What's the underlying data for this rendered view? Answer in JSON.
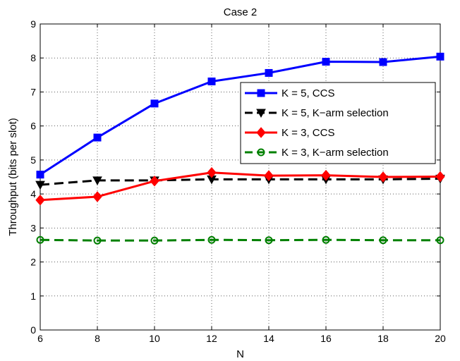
{
  "chart_data": {
    "type": "line",
    "title": "Case 2",
    "xlabel": "N",
    "ylabel": "Throughput (bits per slot)",
    "x": [
      6,
      8,
      10,
      12,
      14,
      16,
      18,
      20
    ],
    "xlim": [
      6,
      20
    ],
    "ylim": [
      0,
      9
    ],
    "xticks": [
      6,
      8,
      10,
      12,
      14,
      16,
      18,
      20
    ],
    "yticks": [
      0,
      1,
      2,
      3,
      4,
      5,
      6,
      7,
      8,
      9
    ],
    "grid": true,
    "legend_position": "upper-right",
    "series": [
      {
        "name": "K = 5, CCS",
        "color": "#0000ff",
        "marker": "square",
        "dash": "solid",
        "values": [
          4.57,
          5.66,
          6.66,
          7.31,
          7.56,
          7.89,
          7.88,
          8.04
        ]
      },
      {
        "name": "K = 5, K−arm selection",
        "color": "#000000",
        "marker": "triangle-down",
        "dash": "dashed",
        "values": [
          4.27,
          4.4,
          4.4,
          4.43,
          4.43,
          4.43,
          4.43,
          4.45
        ]
      },
      {
        "name": "K = 3, CCS",
        "color": "#ff0000",
        "marker": "diamond",
        "dash": "solid",
        "values": [
          3.82,
          3.92,
          4.38,
          4.63,
          4.54,
          4.55,
          4.5,
          4.51
        ]
      },
      {
        "name": "K = 3, K−arm selection",
        "color": "#008000",
        "marker": "circle",
        "dash": "dashed",
        "values": [
          2.65,
          2.63,
          2.63,
          2.65,
          2.64,
          2.65,
          2.64,
          2.64
        ]
      }
    ]
  }
}
